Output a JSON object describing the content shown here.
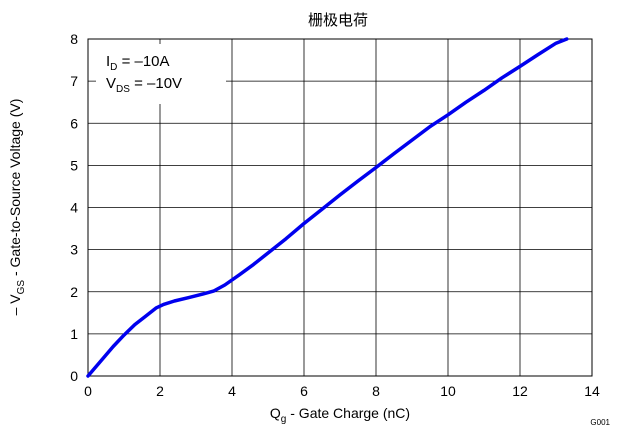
{
  "chart_data": {
    "type": "line",
    "title": "栅极电荷",
    "xlabel": {
      "main": "Q",
      "sub": "g",
      "rest": " - Gate Charge (nC)"
    },
    "ylabel": {
      "prefix": "– V",
      "sub": "GS",
      "rest": " - Gate-to-Source Voltage (V)"
    },
    "xlim": [
      0,
      14
    ],
    "ylim": [
      0,
      8
    ],
    "xticks": [
      "0",
      "2",
      "4",
      "6",
      "8",
      "10",
      "12",
      "14"
    ],
    "yticks": [
      "0",
      "1",
      "2",
      "3",
      "4",
      "5",
      "6",
      "7",
      "8"
    ],
    "grid": true,
    "line_color": "#0000ee",
    "annotations": [
      {
        "main": "I",
        "sub": "D",
        "rest": " = –10A"
      },
      {
        "main": "V",
        "sub": "DS",
        "rest": " = –10V"
      }
    ],
    "figure_id": "G001",
    "series": [
      {
        "x": [
          0,
          0.3,
          0.7,
          1.0,
          1.3,
          1.6,
          1.9,
          2.1,
          2.4,
          2.8,
          3.2,
          3.5,
          3.8,
          4.2,
          4.6,
          5.0,
          5.5,
          6.0,
          6.5,
          7.0,
          7.5,
          8.0,
          8.5,
          9.0,
          9.5,
          10.0,
          10.5,
          11.0,
          11.5,
          12.0,
          12.5,
          13.0,
          13.3
        ],
        "y": [
          0,
          0.3,
          0.7,
          0.97,
          1.22,
          1.42,
          1.62,
          1.7,
          1.78,
          1.86,
          1.95,
          2.02,
          2.16,
          2.4,
          2.65,
          2.92,
          3.26,
          3.62,
          3.96,
          4.3,
          4.63,
          4.95,
          5.28,
          5.6,
          5.92,
          6.2,
          6.5,
          6.78,
          7.08,
          7.35,
          7.63,
          7.9,
          8.0
        ]
      }
    ]
  }
}
